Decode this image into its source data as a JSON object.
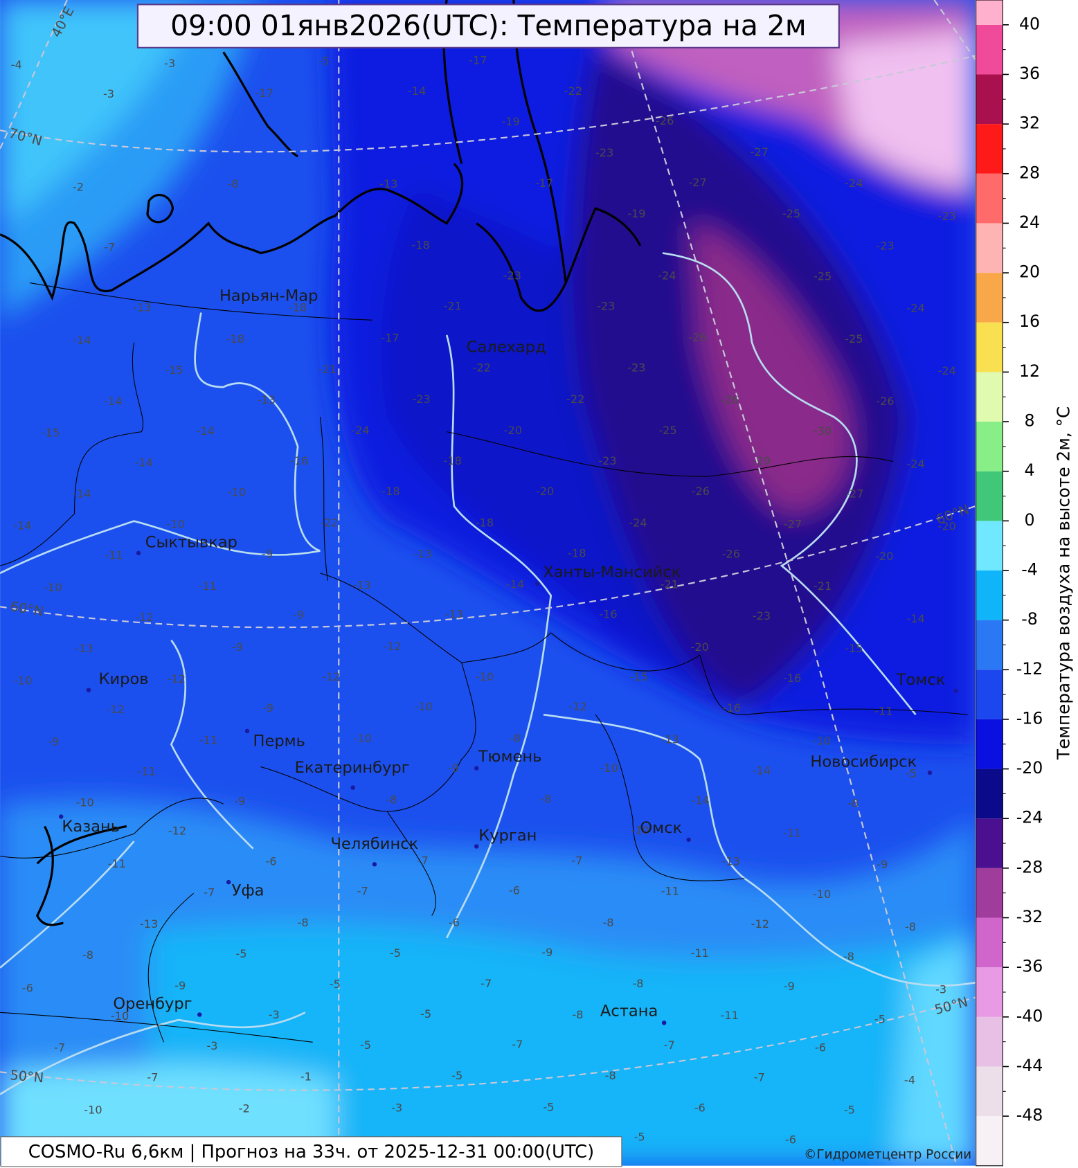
{
  "header": {
    "title": "09:00 01янв2026(UTC): Температура на 2м"
  },
  "footer": {
    "model": "COSMO-Ru 6,6км | Прогноз на  33ч. от 2025-12-31 00:00(UTC)",
    "copyright": "©Гидрометцентр России"
  },
  "colorbar": {
    "label": "Температура воздуха на высоте 2м, °C",
    "lim": [
      -52,
      42
    ],
    "ticks": [
      -48,
      -44,
      -40,
      -36,
      -32,
      -28,
      -24,
      -20,
      -16,
      -12,
      -8,
      -4,
      0,
      4,
      8,
      12,
      16,
      20,
      24,
      28,
      32,
      36,
      40
    ],
    "colors": [
      "#f7f0f5",
      "#ecdfe9",
      "#e8c0e6",
      "#e89ae4",
      "#d066cc",
      "#a03c9c",
      "#4a1090",
      "#0a0a8a",
      "#0a10e0",
      "#1c46ee",
      "#2a78f4",
      "#10b4f8",
      "#70e8ff",
      "#40c878",
      "#88ee88",
      "#e0fab0",
      "#f8e050",
      "#f8a848",
      "#ffb4b4",
      "#ff6a6a",
      "#ff1a1a",
      "#a8104e",
      "#f04a9a",
      "#ffb0cc"
    ]
  },
  "graticule_labels": [
    "40°E",
    "70°N",
    "60°N",
    "50°N",
    "60°N",
    "50°N"
  ],
  "cities": [
    {
      "name": "Нарьян-Мар"
    },
    {
      "name": "Салехард"
    },
    {
      "name": "Сыктывкар"
    },
    {
      "name": "Ханты-Мансийск"
    },
    {
      "name": "Киров"
    },
    {
      "name": "Пермь"
    },
    {
      "name": "Екатеринбург"
    },
    {
      "name": "Тюмень"
    },
    {
      "name": "Новосибирск"
    },
    {
      "name": "Томск"
    },
    {
      "name": "Казань"
    },
    {
      "name": "Челябинск"
    },
    {
      "name": "Курган"
    },
    {
      "name": "Омск"
    },
    {
      "name": "Уфа"
    },
    {
      "name": "Оренбург"
    },
    {
      "name": "Астана"
    }
  ],
  "temperature_labels": [
    -4,
    -3,
    -5,
    -17,
    -22,
    -26,
    -27,
    -24,
    -23,
    -3,
    -17,
    -14,
    -19,
    -23,
    -27,
    -25,
    -23,
    -2,
    -8,
    -13,
    -17,
    -19,
    -7,
    -18,
    -23,
    -24,
    -25,
    -13,
    -18,
    -21,
    -23,
    -24,
    -14,
    -18,
    -17,
    -22,
    -23,
    -26,
    -25,
    -24,
    -15,
    -21,
    -14,
    -13,
    -23,
    -22,
    -26,
    -26,
    -15,
    -14,
    -24,
    -20,
    -25,
    -30,
    -14,
    -16,
    -18,
    -23,
    -29,
    -24,
    -14,
    -10,
    -18,
    -20,
    -26,
    -27,
    -14,
    -10,
    -22,
    -18,
    -24,
    -27,
    -20,
    -11,
    -9,
    -13,
    -18,
    -26,
    -20,
    -10,
    -11,
    -13,
    -14,
    -21,
    -21,
    -12,
    -9,
    -13,
    -16,
    -23,
    -14,
    -13,
    -9,
    -12,
    -20,
    -15,
    -10,
    -12,
    -12,
    -10,
    -15,
    -16,
    -12,
    -9,
    -10,
    -12,
    -16,
    -11,
    -9,
    -11,
    -10,
    -8,
    -13,
    -10,
    -11,
    -9,
    -10,
    -14,
    -5,
    -10,
    -9,
    -8,
    -8,
    -14,
    -8,
    -12,
    -10,
    -11,
    -11,
    -6,
    -7,
    -7,
    -13,
    -9,
    -7,
    -7,
    -6,
    -11,
    -10,
    -13,
    -8,
    -6,
    -8,
    -12,
    -8,
    -8,
    -5,
    -5,
    -9,
    -11,
    -8,
    -6,
    -9,
    -5,
    -7,
    -8,
    -9,
    -3,
    -10,
    -3,
    -5,
    -8,
    -11,
    -5,
    -7,
    -3,
    -5,
    -7,
    -7,
    -6,
    -7,
    -1,
    -5,
    -8,
    -7,
    -4,
    -10,
    -2,
    -3,
    -5,
    -6,
    -5,
    -5,
    -6
  ]
}
